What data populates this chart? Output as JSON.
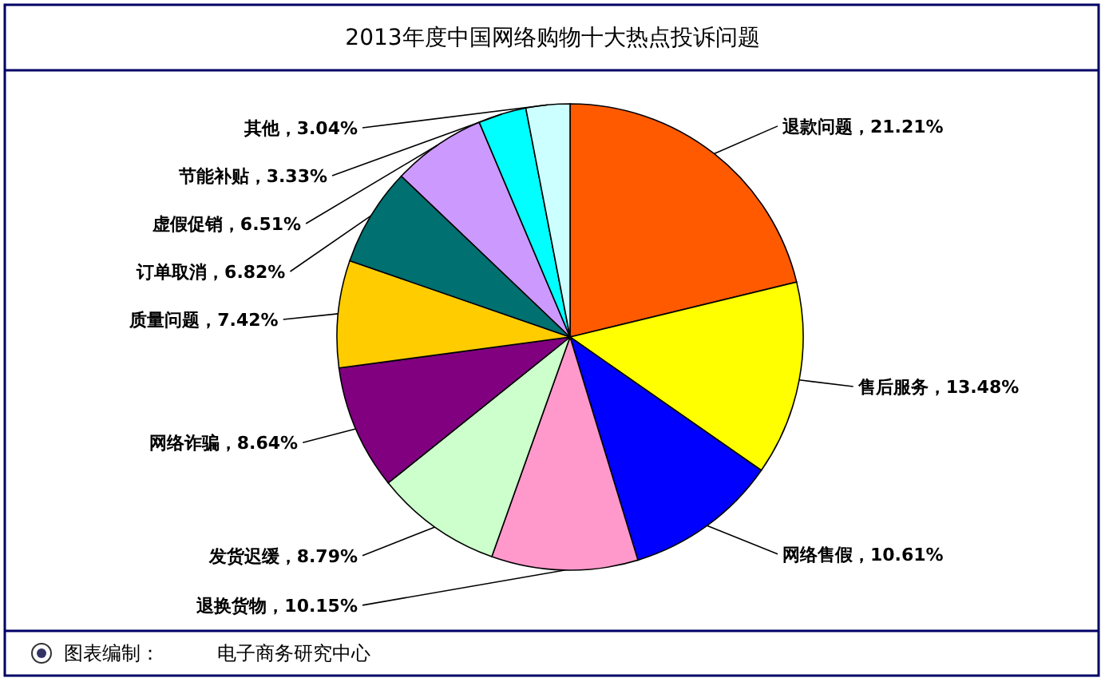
{
  "chart_data": {
    "type": "pie",
    "title": "2013年度中国网络购物十大热点投诉问题",
    "categories": [
      "退款问题",
      "售后服务",
      "网络售假",
      "退换货物",
      "发货迟缓",
      "网络诈骗",
      "质量问题",
      "订单取消",
      "虚假促销",
      "节能补贴",
      "其他"
    ],
    "values": [
      21.21,
      13.48,
      10.61,
      10.15,
      8.79,
      8.64,
      7.42,
      6.82,
      6.51,
      3.33,
      3.04
    ],
    "colors": [
      "#ff5a00",
      "#ffff00",
      "#0000ff",
      "#ff99cc",
      "#ccffcc",
      "#800080",
      "#ffcc00",
      "#007070",
      "#cc99ff",
      "#00ffff",
      "#ccffff"
    ],
    "value_labels": [
      "，21.21%",
      "，13.48%",
      "，10.61%",
      "，10.15%",
      "，8.79%",
      "，8.64%",
      "，7.42%",
      "，6.82%",
      "，6.51%",
      "，3.33%",
      "，3.04%"
    ],
    "annotations": [
      "图表编制：",
      "电子商务研究中心"
    ]
  }
}
